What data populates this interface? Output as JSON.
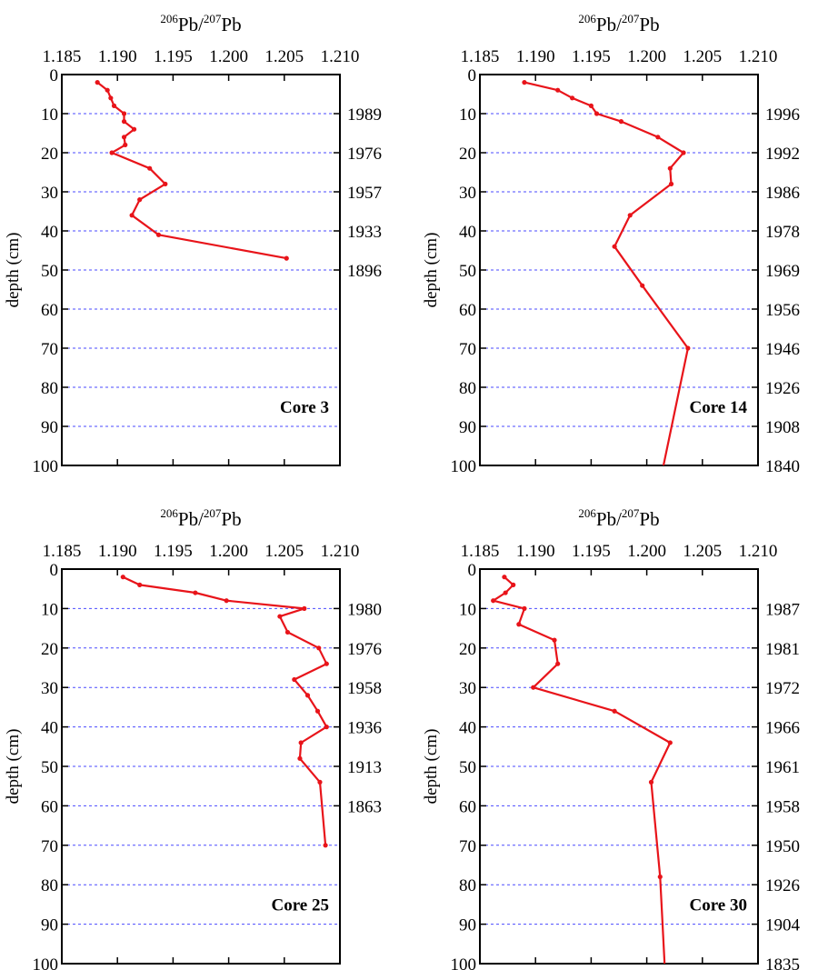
{
  "chart_data": [
    {
      "type": "line",
      "title": {
        "iso_a": "206",
        "elem_a": "Pb/",
        "iso_b": "207",
        "elem_b": "Pb"
      },
      "ylabel": "depth (cm)",
      "annotation": "Core 3",
      "color": "#e8141a",
      "grid_color": "#4a4aff",
      "xlim": [
        1.185,
        1.21
      ],
      "x_ticks": [
        "1.185",
        "1.190",
        "1.195",
        "1.200",
        "1.205",
        "1.210"
      ],
      "ylim": [
        0,
        100
      ],
      "y_ticks": [
        "0",
        "10",
        "20",
        "30",
        "40",
        "50",
        "60",
        "70",
        "80",
        "90",
        "100"
      ],
      "right_ticks": [
        {
          "depth": 10,
          "label": "1989"
        },
        {
          "depth": 20,
          "label": "1976"
        },
        {
          "depth": 30,
          "label": "1957"
        },
        {
          "depth": 40,
          "label": "1933"
        },
        {
          "depth": 50,
          "label": "1896"
        }
      ],
      "points": [
        [
          1.1882,
          2
        ],
        [
          1.1891,
          4
        ],
        [
          1.1894,
          6
        ],
        [
          1.1897,
          8
        ],
        [
          1.1906,
          10
        ],
        [
          1.1906,
          12
        ],
        [
          1.1915,
          14
        ],
        [
          1.1906,
          16
        ],
        [
          1.1907,
          18
        ],
        [
          1.1895,
          20
        ],
        [
          1.1929,
          24
        ],
        [
          1.1943,
          28
        ],
        [
          1.192,
          32
        ],
        [
          1.1913,
          36
        ],
        [
          1.1937,
          41
        ],
        [
          1.2052,
          47
        ]
      ]
    },
    {
      "type": "line",
      "title": {
        "iso_a": "206",
        "elem_a": "Pb/",
        "iso_b": "207",
        "elem_b": "Pb"
      },
      "ylabel": "depth (cm)",
      "annotation": "Core 14",
      "color": "#e8141a",
      "grid_color": "#4a4aff",
      "xlim": [
        1.185,
        1.21
      ],
      "x_ticks": [
        "1.185",
        "1.190",
        "1.195",
        "1.200",
        "1.205",
        "1.210"
      ],
      "ylim": [
        0,
        100
      ],
      "y_ticks": [
        "0",
        "10",
        "20",
        "30",
        "40",
        "50",
        "60",
        "70",
        "80",
        "90",
        "100"
      ],
      "right_ticks": [
        {
          "depth": 10,
          "label": "1996"
        },
        {
          "depth": 20,
          "label": "1992"
        },
        {
          "depth": 30,
          "label": "1986"
        },
        {
          "depth": 40,
          "label": "1978"
        },
        {
          "depth": 50,
          "label": "1969"
        },
        {
          "depth": 60,
          "label": "1956"
        },
        {
          "depth": 70,
          "label": "1946"
        },
        {
          "depth": 80,
          "label": "1926"
        },
        {
          "depth": 90,
          "label": "1908"
        },
        {
          "depth": 100,
          "label": "1840"
        }
      ],
      "points": [
        [
          1.189,
          2
        ],
        [
          1.192,
          4
        ],
        [
          1.1933,
          6
        ],
        [
          1.195,
          8
        ],
        [
          1.1955,
          10
        ],
        [
          1.1977,
          12
        ],
        [
          1.201,
          16
        ],
        [
          1.2033,
          20
        ],
        [
          1.2021,
          24
        ],
        [
          1.2022,
          28
        ],
        [
          1.1985,
          36
        ],
        [
          1.1971,
          44
        ],
        [
          1.1996,
          54
        ],
        [
          1.2037,
          70
        ],
        [
          1.2015,
          100
        ]
      ]
    },
    {
      "type": "line",
      "title": {
        "iso_a": "206",
        "elem_a": "Pb/",
        "iso_b": "207",
        "elem_b": "Pb"
      },
      "ylabel": "depth (cm)",
      "annotation": "Core 25",
      "color": "#e8141a",
      "grid_color": "#4a4aff",
      "xlim": [
        1.185,
        1.21
      ],
      "x_ticks": [
        "1.185",
        "1.190",
        "1.195",
        "1.200",
        "1.205",
        "1.210"
      ],
      "ylim": [
        0,
        100
      ],
      "y_ticks": [
        "0",
        "10",
        "20",
        "30",
        "40",
        "50",
        "60",
        "70",
        "80",
        "90",
        "100"
      ],
      "right_ticks": [
        {
          "depth": 10,
          "label": "1980"
        },
        {
          "depth": 20,
          "label": "1976"
        },
        {
          "depth": 30,
          "label": "1958"
        },
        {
          "depth": 40,
          "label": "1936"
        },
        {
          "depth": 50,
          "label": "1913"
        },
        {
          "depth": 60,
          "label": "1863"
        }
      ],
      "points": [
        [
          1.1905,
          2
        ],
        [
          1.192,
          4
        ],
        [
          1.197,
          6
        ],
        [
          1.1998,
          8
        ],
        [
          1.2068,
          10
        ],
        [
          1.2046,
          12
        ],
        [
          1.2053,
          16
        ],
        [
          1.2081,
          20
        ],
        [
          1.2088,
          24
        ],
        [
          1.2059,
          28
        ],
        [
          1.2071,
          32
        ],
        [
          1.208,
          36
        ],
        [
          1.2088,
          40
        ],
        [
          1.2065,
          44
        ],
        [
          1.2064,
          48
        ],
        [
          1.2082,
          54
        ],
        [
          1.2087,
          70
        ]
      ]
    },
    {
      "type": "line",
      "title": {
        "iso_a": "206",
        "elem_a": "Pb/",
        "iso_b": "207",
        "elem_b": "Pb"
      },
      "ylabel": "depth (cm)",
      "annotation": "Core 30",
      "color": "#e8141a",
      "grid_color": "#4a4aff",
      "xlim": [
        1.185,
        1.21
      ],
      "x_ticks": [
        "1.185",
        "1.190",
        "1.195",
        "1.200",
        "1.205",
        "1.210"
      ],
      "ylim": [
        0,
        100
      ],
      "y_ticks": [
        "0",
        "10",
        "20",
        "30",
        "40",
        "50",
        "60",
        "70",
        "80",
        "90",
        "100"
      ],
      "right_ticks": [
        {
          "depth": 10,
          "label": "1987"
        },
        {
          "depth": 20,
          "label": "1981"
        },
        {
          "depth": 30,
          "label": "1972"
        },
        {
          "depth": 40,
          "label": "1966"
        },
        {
          "depth": 50,
          "label": "1961"
        },
        {
          "depth": 60,
          "label": "1958"
        },
        {
          "depth": 70,
          "label": "1950"
        },
        {
          "depth": 80,
          "label": "1926"
        },
        {
          "depth": 90,
          "label": "1904"
        },
        {
          "depth": 100,
          "label": "1835"
        }
      ],
      "points": [
        [
          1.1872,
          2
        ],
        [
          1.188,
          4
        ],
        [
          1.1873,
          6
        ],
        [
          1.1862,
          8
        ],
        [
          1.189,
          10
        ],
        [
          1.1885,
          14
        ],
        [
          1.1917,
          18
        ],
        [
          1.192,
          24
        ],
        [
          1.1898,
          30
        ],
        [
          1.1971,
          36
        ],
        [
          1.2021,
          44
        ],
        [
          1.2004,
          54
        ],
        [
          1.2012,
          78
        ],
        [
          1.2016,
          100
        ]
      ]
    }
  ]
}
